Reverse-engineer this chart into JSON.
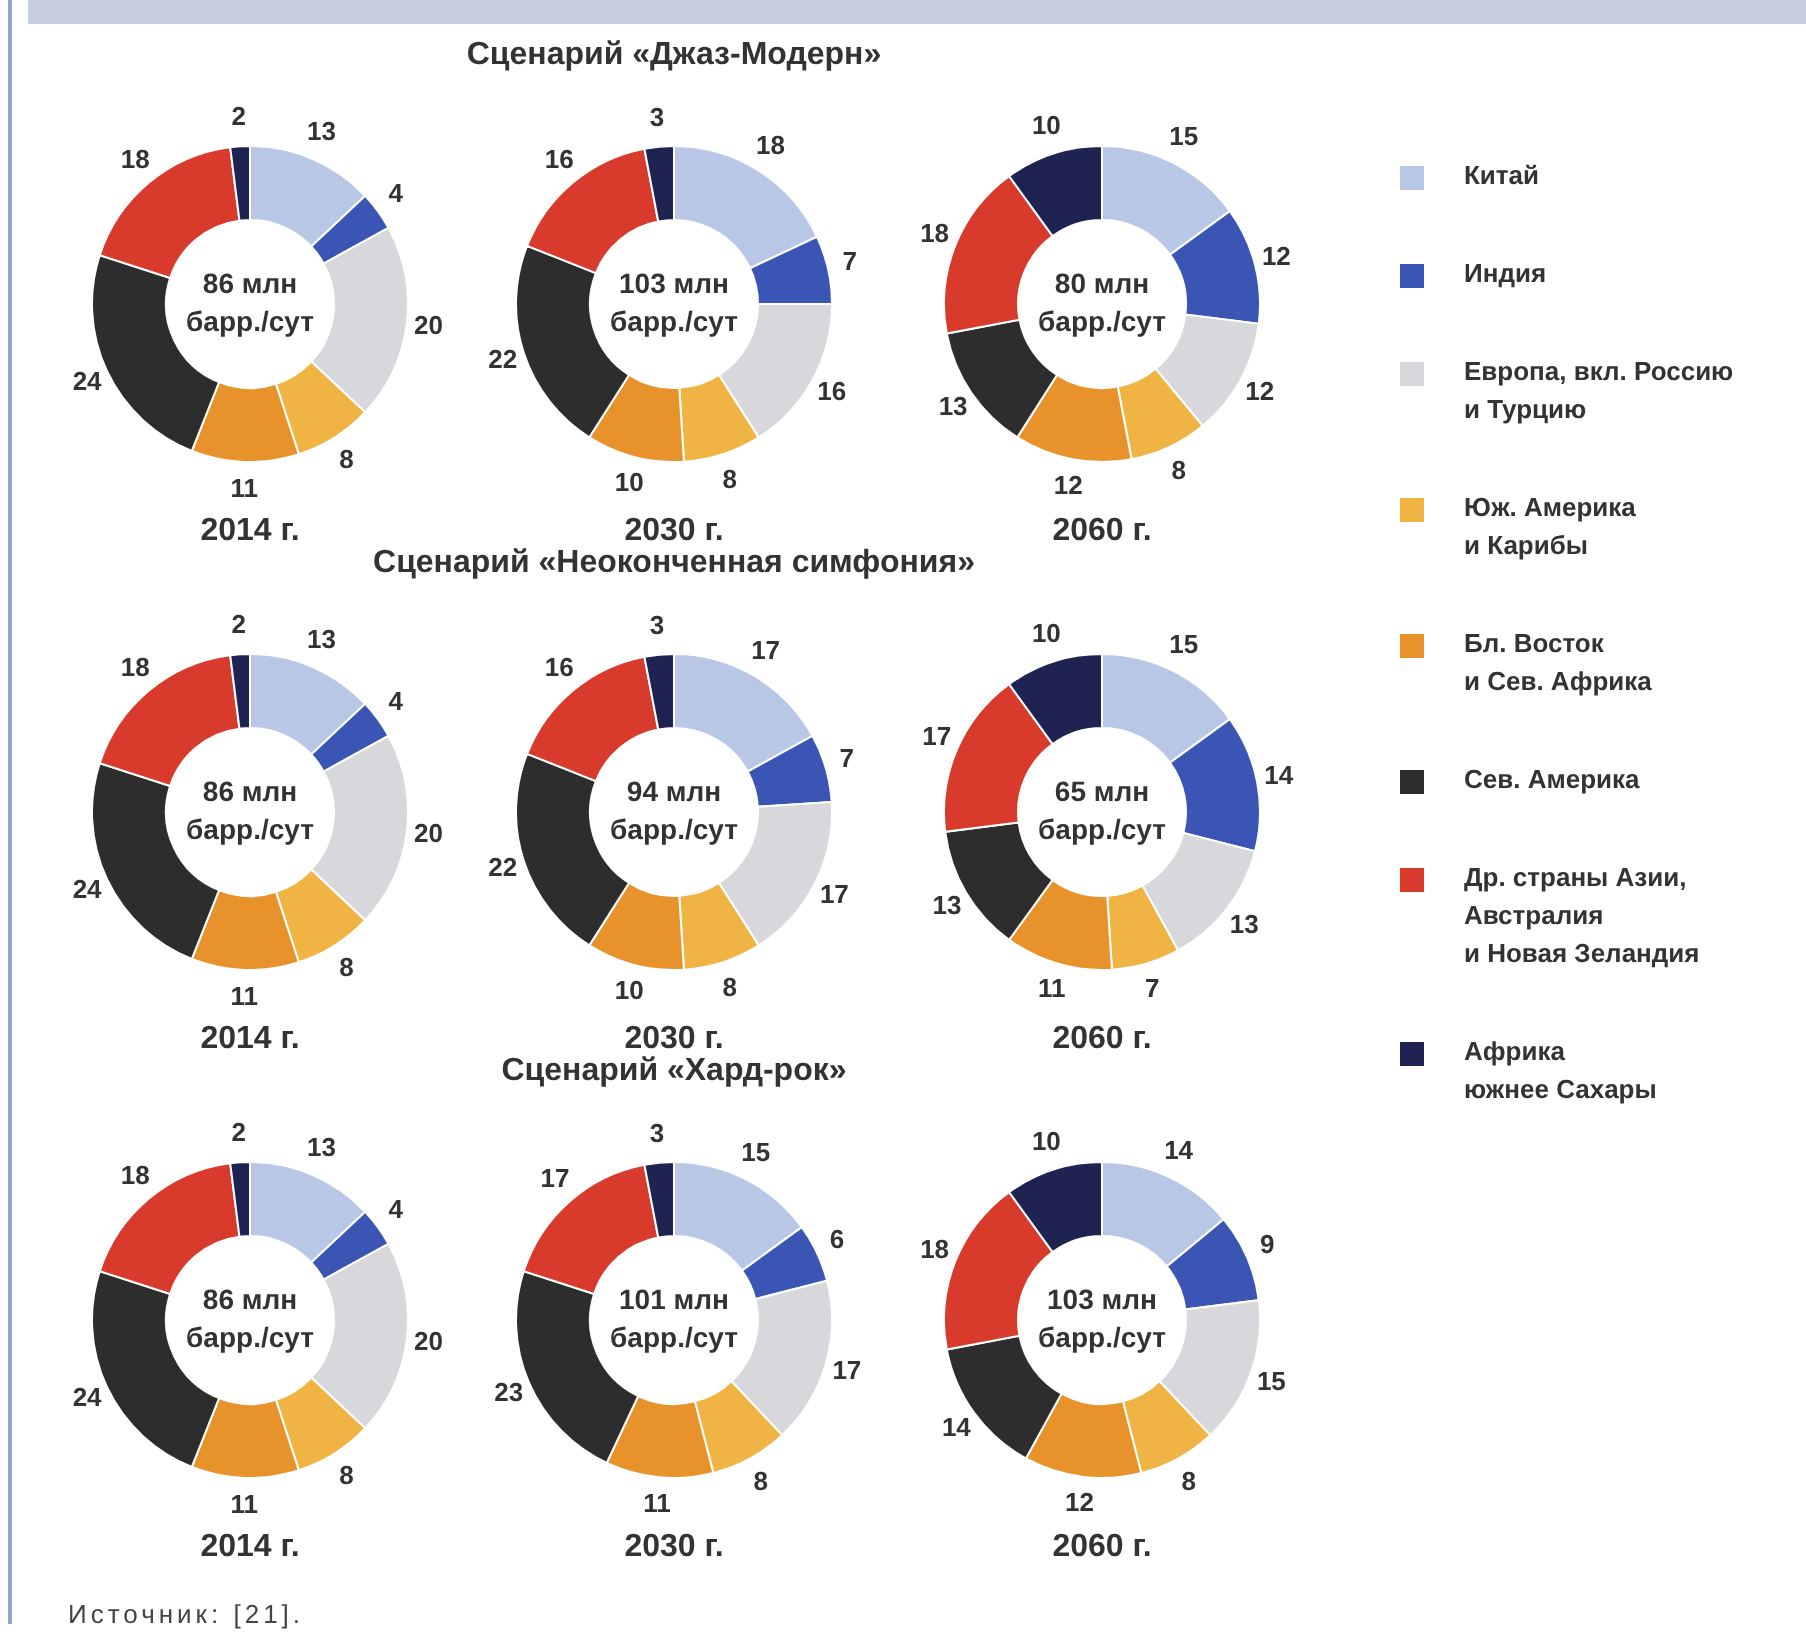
{
  "chart_data": [
    {
      "type": "donut",
      "categories": [
        null,
        null,
        null,
        null,
        null,
        null,
        null,
        null
      ],
      "values": [
        13,
        4,
        20,
        8,
        11,
        24,
        18,
        2
      ],
      "colors": [
        "#b9c7e6",
        "#3b55b5",
        "#d8d8dc",
        "#f0b444",
        "#e8922c",
        "#2d2d2d",
        "#d83a2b",
        "#1e2352"
      ],
      "xlabel": "2014 г.",
      "annotations": [
        "86 млн барр./сут"
      ],
      "data_labels": true
    },
    {
      "type": "donut",
      "title": "Сценарий «Джаз-Модерн»",
      "categories": [
        null,
        null,
        null,
        null,
        null,
        null,
        null,
        null
      ],
      "values": [
        18,
        7,
        16,
        8,
        10,
        22,
        16,
        3
      ],
      "colors": [
        "#b9c7e6",
        "#3b55b5",
        "#d8d8dc",
        "#f0b444",
        "#e8922c",
        "#2d2d2d",
        "#d83a2b",
        "#1e2352"
      ],
      "xlabel": "2030 г.",
      "annotations": [
        "103 млн барр./сут"
      ],
      "data_labels": true
    },
    {
      "type": "donut",
      "categories": [
        "Китай",
        "Индия",
        "Европа, вкл. Россию\nи Турцию",
        "Юж. Америка\nи Карибы",
        "Бл. Восток\nи Сев. Африка",
        "Сев. Америка",
        "Др. страны Азии,\nАвстралия\nи Новая Зеландия",
        "Африка\nюжнее Сахары"
      ],
      "values": [
        15,
        12,
        12,
        8,
        12,
        13,
        18,
        10
      ],
      "colors": [
        "#b9c7e6",
        "#3b55b5",
        "#d8d8dc",
        "#f0b444",
        "#e8922c",
        "#2d2d2d",
        "#d83a2b",
        "#1e2352"
      ],
      "xlabel": "2060 г.",
      "annotations": [
        "80 млн барр./сут"
      ],
      "data_labels": true,
      "legend": "right"
    },
    {
      "type": "donut",
      "categories": [
        null,
        null,
        null,
        null,
        null,
        null,
        null,
        null
      ],
      "values": [
        13,
        4,
        20,
        8,
        11,
        24,
        18,
        2
      ],
      "colors": [
        "#b9c7e6",
        "#3b55b5",
        "#d8d8dc",
        "#f0b444",
        "#e8922c",
        "#2d2d2d",
        "#d83a2b",
        "#1e2352"
      ],
      "xlabel": "2014 г.",
      "annotations": [
        "86 млн барр./сут"
      ],
      "data_labels": true
    },
    {
      "type": "donut",
      "title": "Сценарий «Неоконченная симфония»",
      "categories": [
        null,
        null,
        null,
        null,
        null,
        null,
        null,
        null
      ],
      "values": [
        17,
        7,
        17,
        8,
        10,
        22,
        16,
        3
      ],
      "colors": [
        "#b9c7e6",
        "#3b55b5",
        "#d8d8dc",
        "#f0b444",
        "#e8922c",
        "#2d2d2d",
        "#d83a2b",
        "#1e2352"
      ],
      "xlabel": "2030 г.",
      "annotations": [
        "94 млн барр./сут"
      ],
      "data_labels": true
    },
    {
      "type": "donut",
      "categories": [
        null,
        null,
        null,
        null,
        null,
        null,
        null,
        null
      ],
      "values": [
        15,
        14,
        13,
        7,
        11,
        13,
        17,
        10
      ],
      "colors": [
        "#b9c7e6",
        "#3b55b5",
        "#d8d8dc",
        "#f0b444",
        "#e8922c",
        "#2d2d2d",
        "#d83a2b",
        "#1e2352"
      ],
      "xlabel": "2060 г.",
      "annotations": [
        "65 млн барр./сут"
      ],
      "data_labels": true
    },
    {
      "type": "donut",
      "categories": [
        null,
        null,
        null,
        null,
        null,
        null,
        null,
        null
      ],
      "values": [
        13,
        4,
        20,
        8,
        11,
        24,
        18,
        2
      ],
      "colors": [
        "#b9c7e6",
        "#3b55b5",
        "#d8d8dc",
        "#f0b444",
        "#e8922c",
        "#2d2d2d",
        "#d83a2b",
        "#1e2352"
      ],
      "xlabel": "2014 г.",
      "annotations": [
        "86 млн барр./сут",
        "Источник: [21]."
      ],
      "data_labels": true
    },
    {
      "type": "donut",
      "title": "Сценарий «Хард-рок»",
      "categories": [
        null,
        null,
        null,
        null,
        null,
        null,
        null,
        null
      ],
      "values": [
        15,
        6,
        17,
        8,
        11,
        23,
        17,
        3
      ],
      "colors": [
        "#b9c7e6",
        "#3b55b5",
        "#d8d8dc",
        "#f0b444",
        "#e8922c",
        "#2d2d2d",
        "#d83a2b",
        "#1e2352"
      ],
      "xlabel": "2030 г.",
      "annotations": [
        "101 млн барр./сут"
      ],
      "data_labels": true
    },
    {
      "type": "donut",
      "categories": [
        null,
        null,
        null,
        null,
        null,
        null,
        null,
        null
      ],
      "values": [
        14,
        9,
        15,
        8,
        12,
        14,
        18,
        10
      ],
      "colors": [
        "#b9c7e6",
        "#3b55b5",
        "#d8d8dc",
        "#f0b444",
        "#e8922c",
        "#2d2d2d",
        "#d83a2b",
        "#1e2352"
      ],
      "xlabel": "2060 г.",
      "annotations": [
        "103 млн барр./сут"
      ],
      "data_labels": true
    }
  ]
}
